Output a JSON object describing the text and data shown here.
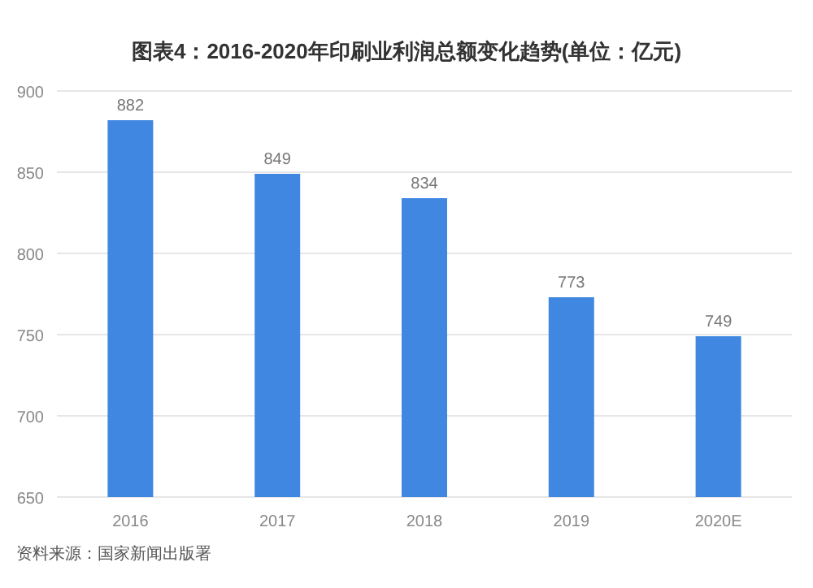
{
  "chart_data": {
    "type": "bar",
    "title": "图表4：2016-2020年印刷业利润总额变化趋势(单位：亿元)",
    "categories": [
      "2016",
      "2017",
      "2018",
      "2019",
      "2020E"
    ],
    "values": [
      882,
      849,
      834,
      773,
      749
    ],
    "color": "#3f87e0",
    "ylim": [
      650,
      900
    ],
    "yticks": [
      650,
      700,
      750,
      800,
      850,
      900
    ],
    "grid": "y",
    "data_labels": true,
    "annotations": [
      "资料来源：国家新闻出版署"
    ]
  }
}
